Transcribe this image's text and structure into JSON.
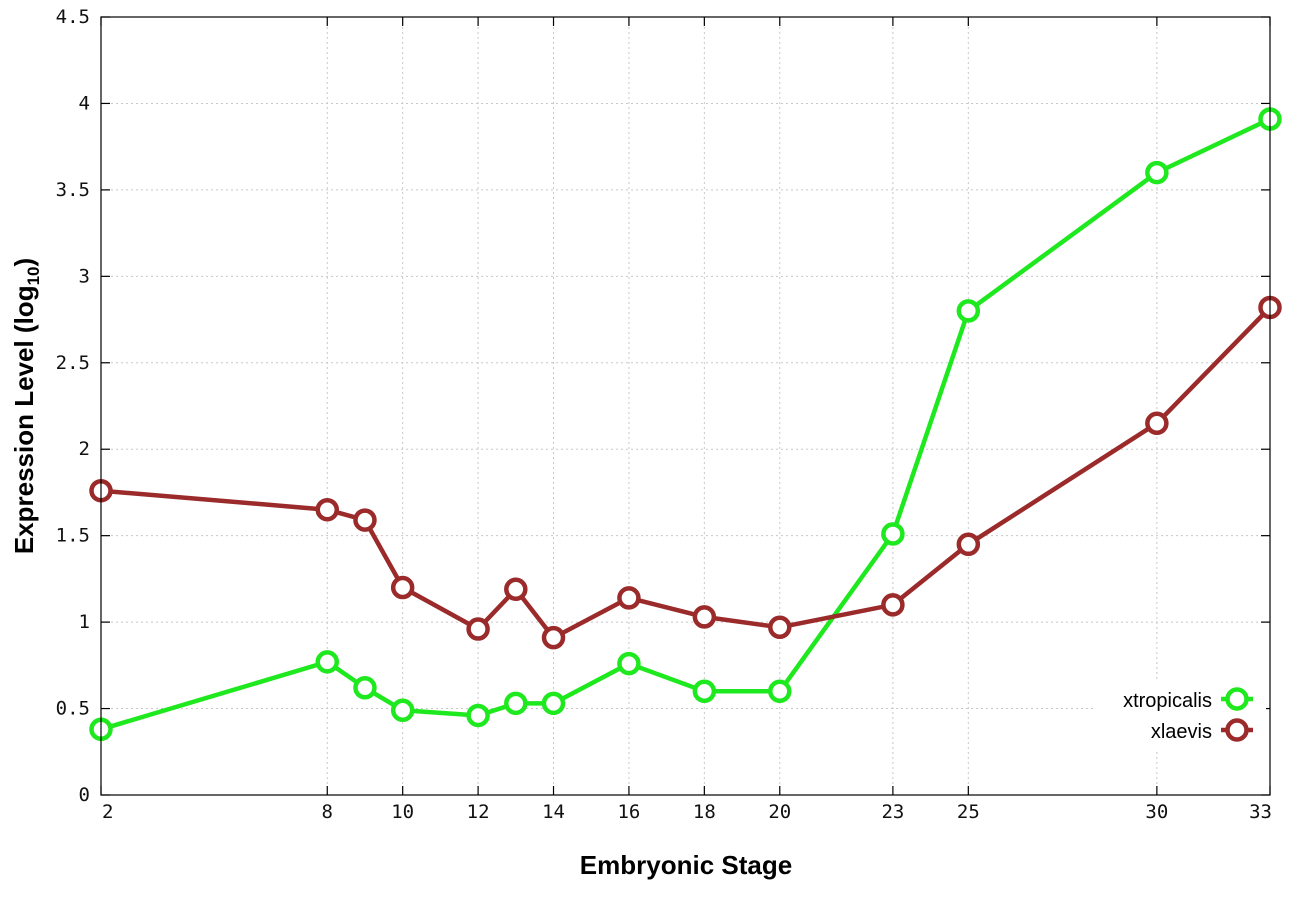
{
  "chart_data": {
    "type": "line",
    "xlabel": "Embryonic Stage",
    "ylabel_main": "Expression Level (log",
    "ylabel_sub": "10",
    "ylabel_end": ")",
    "xlim": [
      2,
      33
    ],
    "ylim": [
      0,
      4.5
    ],
    "x_ticks": [
      2,
      8,
      10,
      12,
      14,
      16,
      18,
      20,
      23,
      25,
      30,
      33
    ],
    "x_tick_labels": [
      "2",
      "8",
      "10",
      "12",
      "14",
      "16",
      "18",
      "20",
      "23",
      "25",
      "30",
      "33"
    ],
    "y_ticks": [
      0,
      0.5,
      1,
      1.5,
      2,
      2.5,
      3,
      3.5,
      4,
      4.5
    ],
    "y_tick_labels": [
      "0",
      "0.5",
      "1",
      "1.5",
      "2",
      "2.5",
      "3",
      "3.5",
      "4",
      "4.5"
    ],
    "grid": true,
    "legend_position": "bottom-right",
    "series": [
      {
        "name": "xtropicalis",
        "color": "#1ee81e",
        "x": [
          2,
          8,
          9,
          10,
          12,
          13,
          14,
          16,
          18,
          20,
          23,
          25,
          30,
          33
        ],
        "values": [
          0.38,
          0.77,
          0.62,
          0.49,
          0.46,
          0.53,
          0.53,
          0.76,
          0.6,
          0.6,
          1.51,
          2.8,
          3.6,
          3.91
        ]
      },
      {
        "name": "xlaevis",
        "color": "#9b2a2a",
        "x": [
          2,
          8,
          9,
          10,
          12,
          13,
          14,
          16,
          18,
          20,
          23,
          25,
          30,
          33
        ],
        "values": [
          1.76,
          1.65,
          1.59,
          1.2,
          0.96,
          1.19,
          0.91,
          1.14,
          1.03,
          0.97,
          1.1,
          1.45,
          2.15,
          2.82
        ]
      }
    ]
  }
}
